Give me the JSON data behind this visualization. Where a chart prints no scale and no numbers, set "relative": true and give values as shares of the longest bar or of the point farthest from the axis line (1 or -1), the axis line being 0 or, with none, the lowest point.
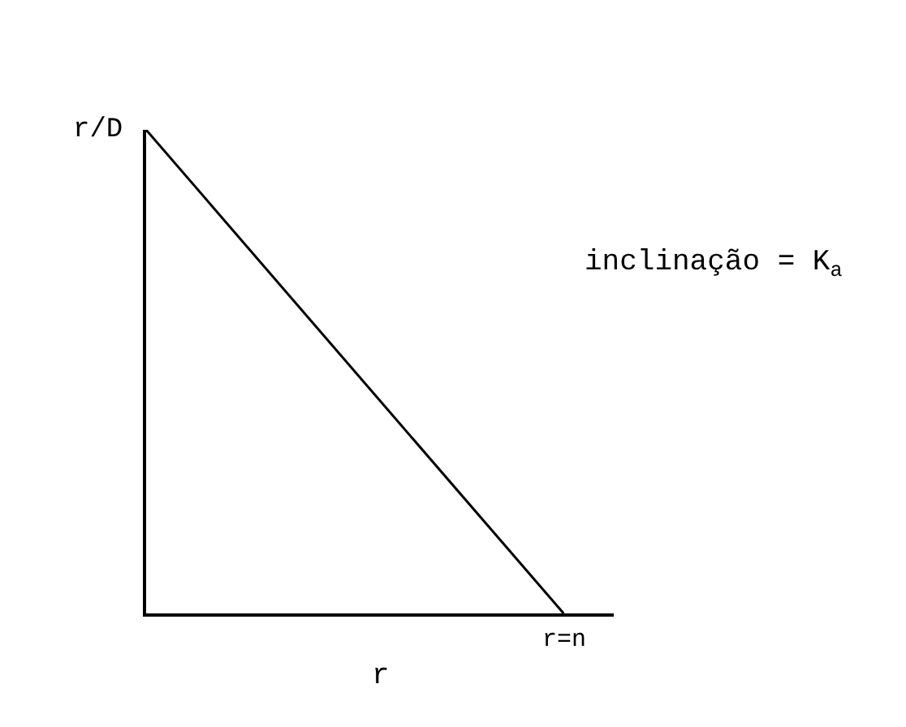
{
  "chart_data": {
    "type": "line",
    "relative": true,
    "categories": [
      null,
      null
    ],
    "series": [
      {
        "color": "#000000",
        "values": [
          1,
          0
        ]
      }
    ],
    "xlabel": "r",
    "ylabel": "r/D",
    "annotations": [
      "inclinação = K$_{a}$",
      "r=n"
    ],
    "marker": "none",
    "line_style": "solid"
  }
}
